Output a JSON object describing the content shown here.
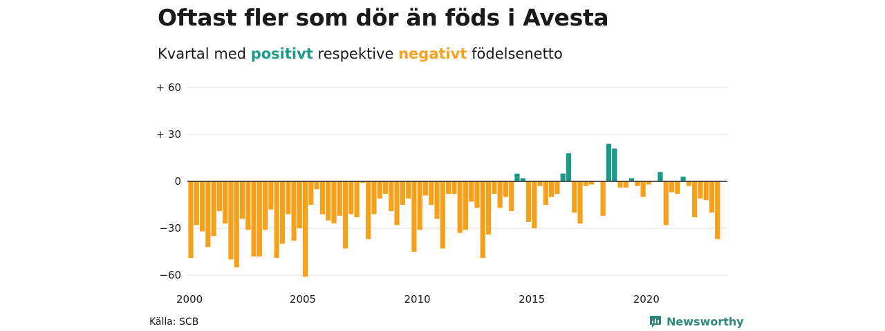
{
  "header": {
    "title": "Oftast fler som dör än föds i Avesta",
    "subtitle_prefix": "Kvartal med",
    "subtitle_positive": "positivt",
    "subtitle_middle": "respektive",
    "subtitle_negative": "negativt",
    "subtitle_suffix": "födelsenetto"
  },
  "footer": {
    "source": "Källa: SCB",
    "brand": "Newsworthy"
  },
  "colors": {
    "positive": "#1a9a87",
    "negative": "#f5a11c",
    "grid": "#dddddd",
    "zero_line": "#222222",
    "brand": "#2d8b7a"
  },
  "chart_data": {
    "type": "bar",
    "x_start_year": 2000,
    "x_tick_labels": [
      "2000",
      "2005",
      "2010",
      "2015",
      "2020"
    ],
    "y_ticks": [
      60,
      30,
      0,
      -30,
      -60
    ],
    "y_tick_labels": [
      "+ 60",
      "+ 30",
      "0",
      "−30",
      "−60"
    ],
    "ylim": [
      -62,
      62
    ],
    "grid": true,
    "legend": "none",
    "series": [
      {
        "values": [
          -49,
          -28,
          -32,
          -42,
          -35,
          -19,
          -27,
          -50,
          -55,
          -24,
          -31,
          -48,
          -48,
          -31,
          -18,
          -49,
          -40,
          -21,
          -38,
          -30,
          -61,
          -15,
          -5,
          -21,
          -25,
          -27,
          -22,
          -43,
          -21,
          -23,
          -1,
          -37,
          -21,
          -11,
          -8,
          -19,
          -28,
          -15,
          -11,
          -45,
          -31,
          -9,
          -15,
          -24,
          -43,
          -8,
          -8,
          -33,
          -31,
          -13,
          -17,
          -49,
          -34,
          -8,
          -17,
          -10,
          -19,
          5,
          2,
          -26,
          -30,
          -3,
          -15,
          -10,
          -8,
          5,
          18,
          -20,
          -27,
          -3,
          -2,
          0,
          -22,
          24,
          21,
          -4,
          -4,
          2,
          -3,
          -10,
          -2,
          0,
          6,
          -28,
          -7,
          -8,
          3,
          -3,
          -23,
          -11,
          -12,
          -20,
          -37
        ]
      }
    ]
  }
}
